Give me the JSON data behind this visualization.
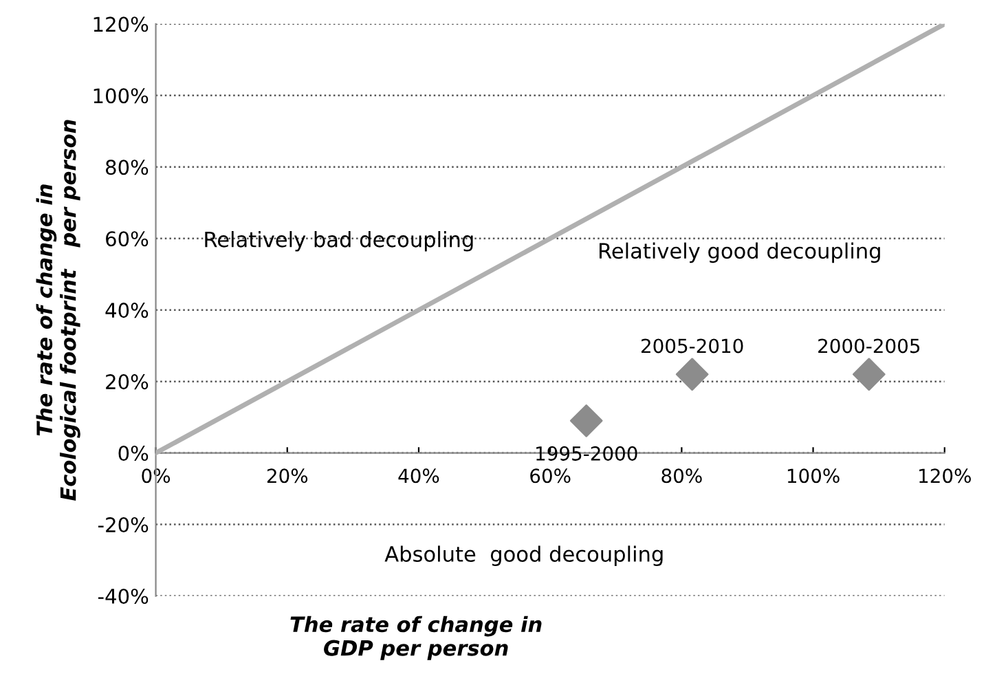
{
  "chart_data": {
    "type": "scatter",
    "xlabel": "The rate of change in\nGDP per person",
    "ylabel": "The rate of change in\nEcological footprint   per person",
    "xlim": [
      0,
      120
    ],
    "ylim": [
      -40,
      120
    ],
    "xticks": [
      {
        "value": 0,
        "label": "0%"
      },
      {
        "value": 20,
        "label": "20%"
      },
      {
        "value": 40,
        "label": "40%"
      },
      {
        "value": 60,
        "label": "60%"
      },
      {
        "value": 80,
        "label": "80%"
      },
      {
        "value": 100,
        "label": "100%"
      },
      {
        "value": 120,
        "label": "120%"
      }
    ],
    "yticks": [
      {
        "value": -40,
        "label": "-40%"
      },
      {
        "value": -20,
        "label": "-20%"
      },
      {
        "value": 0,
        "label": "0%"
      },
      {
        "value": 20,
        "label": "20%"
      },
      {
        "value": 40,
        "label": "40%"
      },
      {
        "value": 60,
        "label": "60%"
      },
      {
        "value": 80,
        "label": "80%"
      },
      {
        "value": 100,
        "label": "100%"
      },
      {
        "value": 120,
        "label": "120%"
      }
    ],
    "grid": "y",
    "legend": false,
    "series": [
      {
        "type": "line",
        "color": "#b0b0b0",
        "x": [
          0,
          120
        ],
        "values": [
          0,
          120
        ],
        "marker": "none"
      },
      {
        "color": "#8c8c8c",
        "x": [
          65.5,
          81.6,
          108.5
        ],
        "values": [
          9,
          22,
          22
        ],
        "marker": "diamond"
      }
    ],
    "annotations": [
      "Relatively bad decoupling",
      "Relatively good decoupling",
      "Absolute  good decoupling",
      {
        "text": "1995-2000",
        "x": 65.5,
        "y": 9
      },
      {
        "text": "2005-2010",
        "x": 81.6,
        "y": 22
      },
      {
        "text": "2000-2005",
        "x": 108.5,
        "y": 22
      }
    ]
  }
}
